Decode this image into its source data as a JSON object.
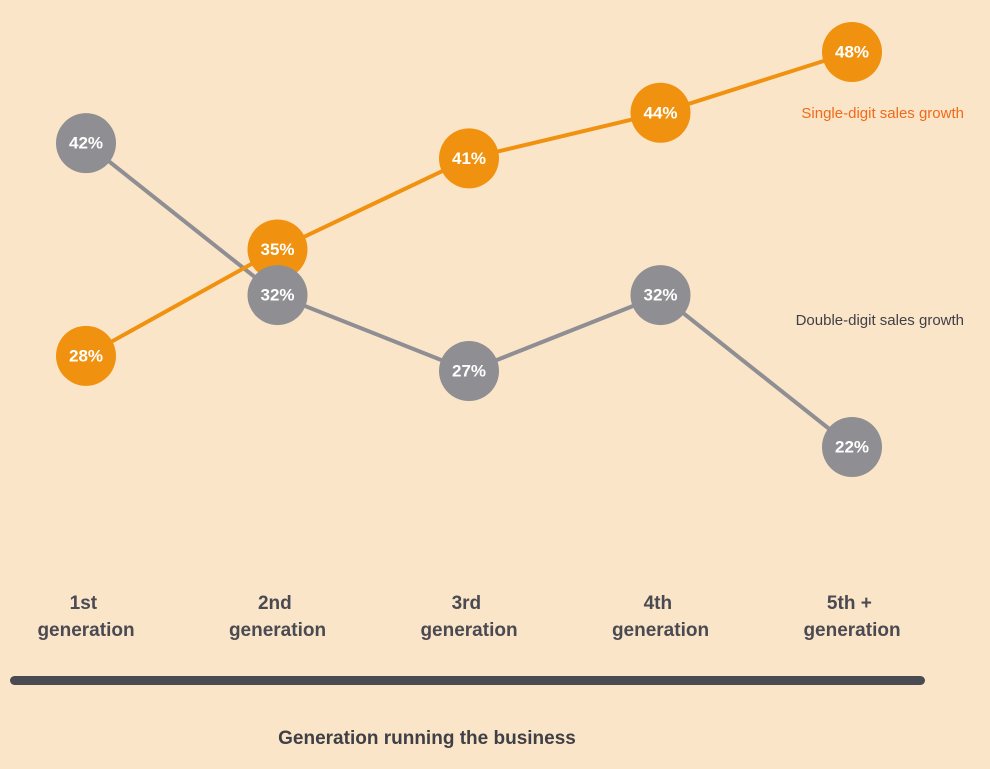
{
  "chart_data": {
    "type": "line",
    "x_label": "Generation running the business",
    "categories": [
      "1st generation",
      "2nd generation",
      "3rd generation",
      "4th generation",
      "5th + generation"
    ],
    "series": [
      {
        "name": "Single-digit sales growth",
        "color": "#f0920f",
        "values": [
          28,
          35,
          41,
          44,
          48
        ],
        "value_labels": [
          "28%",
          "35%",
          "41%",
          "44%",
          "48%"
        ]
      },
      {
        "name": "Double-digit sales growth",
        "color": "#8e8e93",
        "values": [
          42,
          32,
          27,
          32,
          22
        ],
        "value_labels": [
          "42%",
          "32%",
          "27%",
          "32%",
          "22%"
        ]
      }
    ]
  }
}
